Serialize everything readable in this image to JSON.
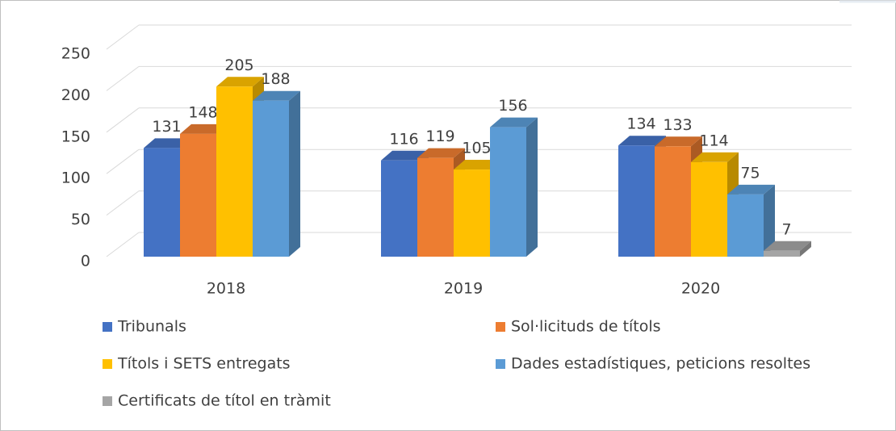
{
  "chart_data": {
    "type": "bar3d",
    "categories": [
      "2018",
      "2019",
      "2020"
    ],
    "series": [
      {
        "name": "Tribunals",
        "color": "#4472c4",
        "values": [
          131,
          116,
          134
        ]
      },
      {
        "name": "Sol·licituds de títols",
        "color": "#ed7d31",
        "values": [
          148,
          119,
          133
        ]
      },
      {
        "name": "Títols i SETS entregats",
        "color": "#ffc000",
        "values": [
          205,
          105,
          114
        ]
      },
      {
        "name": "Dades estadístiques, peticions resoltes",
        "color": "#5b9bd5",
        "values": [
          188,
          156,
          75
        ]
      },
      {
        "name": "Certificats de títol en tràmit",
        "color": "#a5a5a5",
        "values": [
          null,
          null,
          7
        ]
      }
    ],
    "ylim": [
      0,
      250
    ],
    "yticks": [
      0,
      50,
      100,
      150,
      200,
      250
    ],
    "grid": true,
    "legend": "bottom"
  }
}
